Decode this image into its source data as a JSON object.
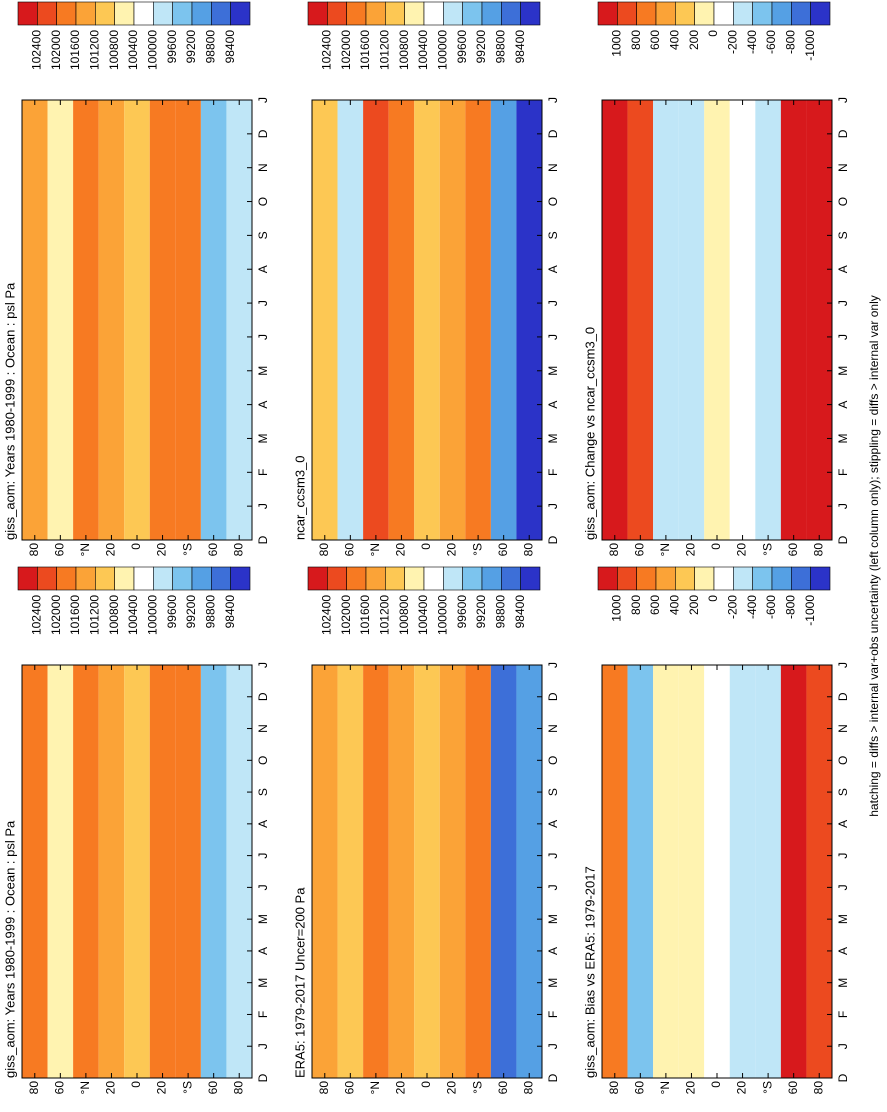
{
  "footnote": "hatching = diffs > internal var+obs uncertainty (left column only); stippling = diffs > internal var only",
  "chart_data": [
    {
      "type": "contour",
      "title": "giss_aom: Years 1980-1999 : Ocean : psl Pa",
      "categories": [
        "D",
        "J",
        "F",
        "M",
        "A",
        "M",
        "J",
        "J",
        "A",
        "S",
        "O",
        "N",
        "D",
        "J"
      ],
      "ylim": [
        -90,
        90
      ],
      "yticks": [
        80,
        60,
        {
          "value": 40,
          "label": "°N"
        },
        20,
        0,
        {
          "value": -20,
          "label": "20"
        },
        {
          "value": -40,
          "label": "°S"
        },
        {
          "value": -60,
          "label": "60"
        },
        {
          "value": -80,
          "label": "80"
        }
      ],
      "y": [
        80,
        60,
        40,
        20,
        0,
        -20,
        -40,
        -60,
        -80
      ],
      "z": [
        101600,
        100600,
        101800,
        101200,
        101000,
        101600,
        101800,
        99200,
        99600
      ],
      "levels": [
        102400,
        102000,
        101600,
        101200,
        100800,
        100400,
        100000,
        99600,
        99200,
        98800,
        98400
      ],
      "colors": [
        "#d7191c",
        "#ec4a1f",
        "#f77a22",
        "#fba337",
        "#fdc854",
        "#fff3b0",
        "#ffffff",
        "#bfe6f7",
        "#7cc4ee",
        "#55a0e4",
        "#3d6fd8",
        "#2b33c8"
      ]
    },
    {
      "type": "contour",
      "title": "giss_aom: Years 1980-1999 : Ocean : psl Pa",
      "categories": [
        "D",
        "J",
        "F",
        "M",
        "A",
        "M",
        "J",
        "J",
        "A",
        "S",
        "O",
        "N",
        "D",
        "J"
      ],
      "ylim": [
        -90,
        90
      ],
      "yticks": [
        80,
        60,
        {
          "value": 40,
          "label": "°N"
        },
        20,
        0,
        {
          "value": -20,
          "label": "20"
        },
        {
          "value": -40,
          "label": "°S"
        },
        {
          "value": -60,
          "label": "60"
        },
        {
          "value": -80,
          "label": "80"
        }
      ],
      "y": [
        80,
        60,
        40,
        20,
        0,
        -20,
        -40,
        -60,
        -80
      ],
      "z": [
        101400,
        100700,
        101700,
        101300,
        101000,
        101600,
        101900,
        99300,
        99600
      ],
      "levels": [
        102400,
        102000,
        101600,
        101200,
        100800,
        100400,
        100000,
        99600,
        99200,
        98800,
        98400
      ],
      "colors": [
        "#d7191c",
        "#ec4a1f",
        "#f77a22",
        "#fba337",
        "#fdc854",
        "#fff3b0",
        "#ffffff",
        "#bfe6f7",
        "#7cc4ee",
        "#55a0e4",
        "#3d6fd8",
        "#2b33c8"
      ]
    },
    {
      "type": "contour",
      "title": "ERA5: 1979-2017 Uncer=200 Pa",
      "categories": [
        "D",
        "J",
        "F",
        "M",
        "A",
        "M",
        "J",
        "J",
        "A",
        "S",
        "O",
        "N",
        "D",
        "J"
      ],
      "ylim": [
        -90,
        90
      ],
      "yticks": [
        80,
        60,
        {
          "value": 40,
          "label": "°N"
        },
        20,
        0,
        {
          "value": -20,
          "label": "20"
        },
        {
          "value": -40,
          "label": "°S"
        },
        {
          "value": -60,
          "label": "60"
        },
        {
          "value": -80,
          "label": "80"
        }
      ],
      "y": [
        80,
        60,
        40,
        20,
        0,
        -20,
        -40,
        -60,
        -80
      ],
      "z": [
        101400,
        100900,
        101800,
        101300,
        101000,
        101500,
        101800,
        98700,
        99000
      ],
      "levels": [
        102400,
        102000,
        101600,
        101200,
        100800,
        100400,
        100000,
        99600,
        99200,
        98800,
        98400
      ],
      "colors": [
        "#d7191c",
        "#ec4a1f",
        "#f77a22",
        "#fba337",
        "#fdc854",
        "#fff3b0",
        "#ffffff",
        "#bfe6f7",
        "#7cc4ee",
        "#55a0e4",
        "#3d6fd8",
        "#2b33c8"
      ]
    },
    {
      "type": "contour",
      "title": "ncar_ccsm3_0",
      "categories": [
        "D",
        "J",
        "F",
        "M",
        "A",
        "M",
        "J",
        "J",
        "A",
        "S",
        "O",
        "N",
        "D",
        "J"
      ],
      "ylim": [
        -90,
        90
      ],
      "yticks": [
        80,
        60,
        {
          "value": 40,
          "label": "°N"
        },
        20,
        0,
        {
          "value": -20,
          "label": "20"
        },
        {
          "value": -40,
          "label": "°S"
        },
        {
          "value": -60,
          "label": "60"
        },
        {
          "value": -80,
          "label": "80"
        }
      ],
      "y": [
        80,
        60,
        40,
        20,
        0,
        -20,
        -40,
        -60,
        -80
      ],
      "z": [
        100900,
        99900,
        102100,
        101700,
        101100,
        101300,
        101600,
        98900,
        98300
      ],
      "levels": [
        102400,
        102000,
        101600,
        101200,
        100800,
        100400,
        100000,
        99600,
        99200,
        98800,
        98400
      ],
      "colors": [
        "#d7191c",
        "#ec4a1f",
        "#f77a22",
        "#fba337",
        "#fdc854",
        "#fff3b0",
        "#ffffff",
        "#bfe6f7",
        "#7cc4ee",
        "#55a0e4",
        "#3d6fd8",
        "#2b33c8"
      ]
    },
    {
      "type": "contour",
      "title": "giss_aom: Bias vs ERA5: 1979-2017",
      "categories": [
        "D",
        "J",
        "F",
        "M",
        "A",
        "M",
        "J",
        "J",
        "A",
        "S",
        "O",
        "N",
        "D",
        "J"
      ],
      "ylim": [
        -90,
        90
      ],
      "yticks": [
        80,
        60,
        {
          "value": 40,
          "label": "°N"
        },
        20,
        0,
        {
          "value": -20,
          "label": "20"
        },
        {
          "value": -40,
          "label": "°S"
        },
        {
          "value": -60,
          "label": "60"
        },
        {
          "value": -80,
          "label": "80"
        }
      ],
      "y": [
        80,
        60,
        40,
        20,
        0,
        -20,
        -40,
        -60,
        -80
      ],
      "z": [
        600,
        -600,
        0,
        0,
        -200,
        -300,
        -400,
        1000,
        900
      ],
      "levels": [
        1000,
        800,
        600,
        400,
        200,
        0,
        -200,
        -400,
        -600,
        -800,
        -1000
      ],
      "colors": [
        "#d7191c",
        "#ec4a1f",
        "#f77a22",
        "#fba337",
        "#fdc854",
        "#fff3b0",
        "#ffffff",
        "#bfe6f7",
        "#7cc4ee",
        "#55a0e4",
        "#3d6fd8",
        "#2b33c8"
      ]
    },
    {
      "type": "contour",
      "title": "giss_aom: Change vs ncar_ccsm3_0",
      "categories": [
        "D",
        "J",
        "F",
        "M",
        "A",
        "M",
        "J",
        "J",
        "A",
        "S",
        "O",
        "N",
        "D",
        "J"
      ],
      "ylim": [
        -90,
        90
      ],
      "yticks": [
        80,
        60,
        {
          "value": 40,
          "label": "°N"
        },
        20,
        0,
        {
          "value": -20,
          "label": "20"
        },
        {
          "value": -40,
          "label": "°S"
        },
        {
          "value": -60,
          "label": "60"
        },
        {
          "value": -80,
          "label": "80"
        }
      ],
      "y": [
        80,
        60,
        40,
        20,
        0,
        -20,
        -40,
        -60,
        -80
      ],
      "z": [
        1000,
        900,
        -400,
        -300,
        0,
        -200,
        -400,
        1000,
        1000
      ],
      "levels": [
        1000,
        800,
        600,
        400,
        200,
        0,
        -200,
        -400,
        -600,
        -800,
        -1000
      ],
      "colors": [
        "#d7191c",
        "#ec4a1f",
        "#f77a22",
        "#fba337",
        "#fdc854",
        "#fff3b0",
        "#ffffff",
        "#bfe6f7",
        "#7cc4ee",
        "#55a0e4",
        "#3d6fd8",
        "#2b33c8"
      ]
    }
  ]
}
